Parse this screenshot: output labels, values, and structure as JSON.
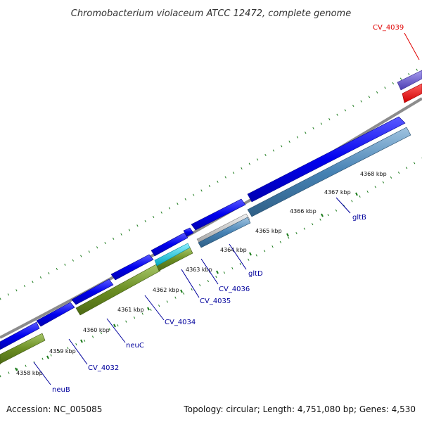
{
  "title": "Chromobacterium violaceum ATCC 12472, complete genome",
  "footer": {
    "accession": "Accession: NC_005085",
    "topology": "Topology: circular; Length: 4,751,080 bp; Genes: 4,530"
  },
  "colors": {
    "backbone": "#8c8c8c",
    "forward_cds": "#0000ee",
    "reverse_cds": "#4682b4",
    "olive_feature": "#6b8e23",
    "cyan_feature": "#00bcd4",
    "grey_feature": "#c0c0c0",
    "highlight_feature": "#ff0000",
    "purple_feature": "#6a5acd",
    "pink_feature": "#e88080",
    "tick_green": "#1a7a1a",
    "label_blue": "#00009c",
    "label_red": "#e00000"
  },
  "scale_ticks": [
    "4358 kbp",
    "4359 kbp",
    "4360 kbp",
    "4361 kbp",
    "4362 kbp",
    "4363 kbp",
    "4364 kbp",
    "4365 kbp",
    "4366 kbp",
    "4367 kbp",
    "4368 kbp"
  ],
  "gene_labels": [
    {
      "name": "neuB",
      "color": "label_blue"
    },
    {
      "name": "CV_4032",
      "color": "label_blue"
    },
    {
      "name": "neuC",
      "color": "label_blue"
    },
    {
      "name": "CV_4034",
      "color": "label_blue"
    },
    {
      "name": "CV_4035",
      "color": "label_blue"
    },
    {
      "name": "CV_4036",
      "color": "label_blue"
    },
    {
      "name": "gltD",
      "color": "label_blue"
    },
    {
      "name": "gltB",
      "color": "label_blue"
    },
    {
      "name": "CV_4039",
      "color": "label_red"
    }
  ]
}
